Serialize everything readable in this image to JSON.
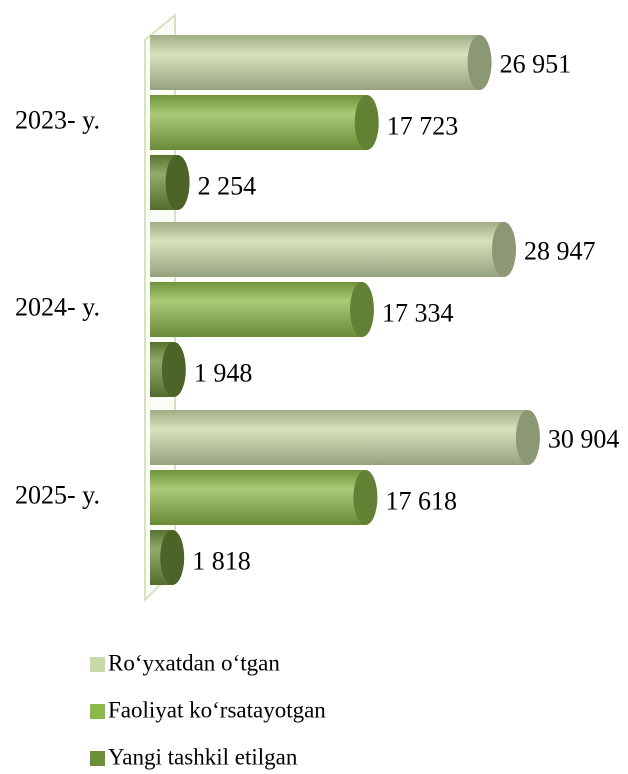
{
  "chart_data": {
    "type": "bar",
    "orientation": "horizontal",
    "categories": [
      "2023- y.",
      "2024- y.",
      "2025- y."
    ],
    "series": [
      {
        "name": "Ro‘yxatdan o‘tgan",
        "color": "#c8d8a6",
        "values": [
          26951,
          28947,
          30904
        ],
        "value_labels": [
          "26 951",
          "28 947",
          "30 904"
        ]
      },
      {
        "name": "Faoliyat ko‘rsatayotgan",
        "color": "#8db84a",
        "values": [
          17723,
          17334,
          17618
        ],
        "value_labels": [
          "17 723",
          "17 334",
          "17 618"
        ]
      },
      {
        "name": "Yangi tashkil etilgan",
        "color": "#6e8f3a",
        "values": [
          2254,
          1948,
          1818
        ],
        "value_labels": [
          "2 254",
          "1 948",
          "1 818"
        ]
      }
    ],
    "xlim": [
      0,
      35000
    ],
    "legend": "bottom"
  }
}
